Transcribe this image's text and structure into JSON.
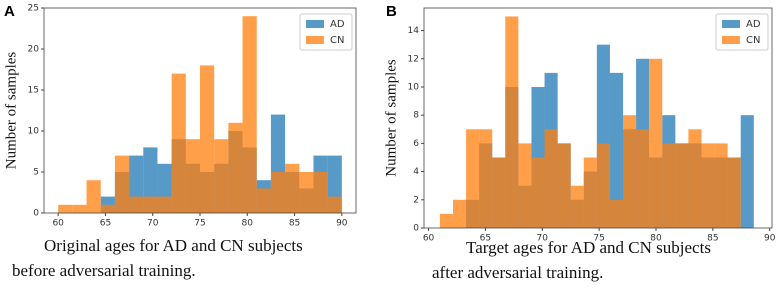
{
  "chart_data": [
    {
      "type": "histogram",
      "panel": "A",
      "ylabel": "Number of samples",
      "caption": [
        "Original ages for AD and CN subjects",
        "before adversarial training."
      ],
      "bins": [
        60,
        61.5,
        63,
        64.5,
        66,
        67.5,
        69,
        70.5,
        72,
        73.5,
        75,
        76.5,
        78,
        79.5,
        81,
        82.5,
        84,
        85.5,
        87,
        88.5,
        90
      ],
      "series": [
        {
          "name": "AD",
          "color": "#1f77b4",
          "values": [
            0,
            0,
            0,
            2,
            5,
            7,
            8,
            6,
            9,
            6,
            5,
            6,
            10,
            8,
            4,
            12,
            5,
            3,
            7,
            7
          ]
        },
        {
          "name": "CN",
          "color": "#ff7f0e",
          "values": [
            1,
            1,
            4,
            1,
            7,
            2,
            2,
            2,
            17,
            9,
            18,
            9,
            11,
            24,
            3,
            5,
            6,
            5,
            5,
            2
          ]
        }
      ],
      "xlim": [
        58.5,
        91.5
      ],
      "ylim": [
        0,
        25
      ],
      "xticks": [
        60,
        65,
        70,
        75,
        80,
        85,
        90
      ],
      "yticks": [
        0,
        5,
        10,
        15,
        20,
        25
      ],
      "legend": "upper right"
    },
    {
      "type": "histogram",
      "panel": "B",
      "ylabel": "Number of samples",
      "caption": [
        "Target ages for AD and CN subjects",
        "after adversarial training."
      ],
      "bins": [
        61,
        62.15,
        63.3,
        64.45,
        65.6,
        66.75,
        67.9,
        69.05,
        70.2,
        71.35,
        72.5,
        73.65,
        74.8,
        75.95,
        77.1,
        78.25,
        79.4,
        80.55,
        81.7,
        82.85,
        84,
        85.15,
        86.3,
        87.45,
        88.6
      ],
      "series": [
        {
          "name": "AD",
          "color": "#1f77b4",
          "values": [
            0,
            0,
            2,
            6,
            5,
            10,
            3,
            10,
            11,
            6,
            2,
            4,
            13,
            11,
            7,
            12,
            5,
            8,
            6,
            6,
            5,
            5,
            5,
            8
          ]
        },
        {
          "name": "CN",
          "color": "#ff7f0e",
          "values": [
            1,
            2,
            7,
            7,
            5,
            15,
            6,
            5,
            7,
            6,
            3,
            5,
            6,
            2,
            8,
            7,
            12,
            6,
            6,
            7,
            6,
            6,
            5,
            0
          ]
        }
      ],
      "xlim": [
        59.6,
        90.2
      ],
      "ylim": [
        0,
        15.6
      ],
      "xticks": [
        60,
        65,
        70,
        75,
        80,
        85,
        90
      ],
      "yticks": [
        0,
        2,
        4,
        6,
        8,
        10,
        12,
        14
      ],
      "legend": "upper right"
    }
  ]
}
